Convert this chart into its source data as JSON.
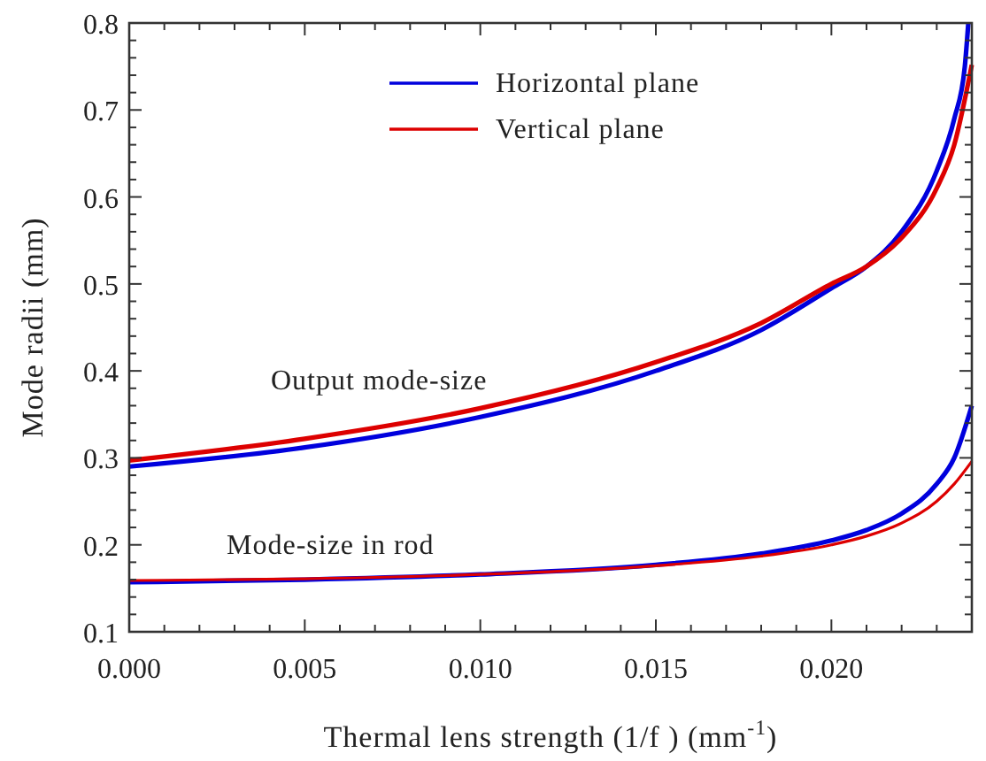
{
  "chart_data": {
    "type": "line",
    "xlabel": "Thermal lens strength (1/f ) (mm$^{-1}$)",
    "ylabel": "Mode radii (mm)",
    "xlim": [
      0,
      0.024
    ],
    "ylim": [
      0.1,
      0.8
    ],
    "xticks": [
      {
        "value": 0,
        "label": "0.000"
      },
      {
        "value": 0.001,
        "label": null
      },
      {
        "value": 0.002,
        "label": null
      },
      {
        "value": 0.003,
        "label": null
      },
      {
        "value": 0.004,
        "label": null
      },
      {
        "value": 0.005,
        "label": "0.005"
      },
      {
        "value": 0.006,
        "label": null
      },
      {
        "value": 0.007,
        "label": null
      },
      {
        "value": 0.008,
        "label": null
      },
      {
        "value": 0.009,
        "label": null
      },
      {
        "value": 0.01,
        "label": "0.010"
      },
      {
        "value": 0.011,
        "label": null
      },
      {
        "value": 0.012,
        "label": null
      },
      {
        "value": 0.013,
        "label": null
      },
      {
        "value": 0.014,
        "label": null
      },
      {
        "value": 0.015,
        "label": "0.015"
      },
      {
        "value": 0.016,
        "label": null
      },
      {
        "value": 0.017,
        "label": null
      },
      {
        "value": 0.018,
        "label": null
      },
      {
        "value": 0.019,
        "label": null
      },
      {
        "value": 0.02,
        "label": "0.020"
      },
      {
        "value": 0.021,
        "label": null
      },
      {
        "value": 0.022,
        "label": null
      },
      {
        "value": 0.023,
        "label": null
      }
    ],
    "yticks": [
      0.1,
      {
        "value": 0.12,
        "label": null
      },
      {
        "value": 0.14,
        "label": null
      },
      {
        "value": 0.16,
        "label": null
      },
      {
        "value": 0.18,
        "label": null
      },
      0.2,
      {
        "value": 0.22,
        "label": null
      },
      {
        "value": 0.24,
        "label": null
      },
      {
        "value": 0.26,
        "label": null
      },
      {
        "value": 0.28,
        "label": null
      },
      0.3,
      {
        "value": 0.32,
        "label": null
      },
      {
        "value": 0.34,
        "label": null
      },
      {
        "value": 0.36,
        "label": null
      },
      {
        "value": 0.38,
        "label": null
      },
      0.4,
      {
        "value": 0.42,
        "label": null
      },
      {
        "value": 0.44,
        "label": null
      },
      {
        "value": 0.46,
        "label": null
      },
      {
        "value": 0.48,
        "label": null
      },
      0.5,
      {
        "value": 0.52,
        "label": null
      },
      {
        "value": 0.54,
        "label": null
      },
      {
        "value": 0.56,
        "label": null
      },
      {
        "value": 0.58,
        "label": null
      },
      0.6,
      {
        "value": 0.62,
        "label": null
      },
      {
        "value": 0.64,
        "label": null
      },
      {
        "value": 0.66,
        "label": null
      },
      {
        "value": 0.68,
        "label": null
      },
      0.7,
      {
        "value": 0.72,
        "label": null
      },
      {
        "value": 0.74,
        "label": null
      },
      {
        "value": 0.76,
        "label": null
      },
      {
        "value": 0.78,
        "label": null
      },
      0.8
    ],
    "grid": false,
    "legend": "top",
    "marker": "none",
    "line_style": "solid",
    "series": [
      {
        "name": "Horizontal plane",
        "color": "#0000dd",
        "x": [
          0,
          0.005,
          0.01,
          0.015,
          0.018,
          0.02,
          0.021,
          0.022,
          0.023,
          0.0235,
          0.0238,
          0.0239
        ],
        "values": [
          0.29,
          0.312,
          0.347,
          0.4,
          0.447,
          0.495,
          0.52,
          0.56,
          0.63,
          0.69,
          0.75,
          0.8
        ]
      },
      {
        "name": "Vertical plane",
        "color": "#dd0000",
        "x": [
          0,
          0.005,
          0.01,
          0.015,
          0.018,
          0.02,
          0.021,
          0.022,
          0.023,
          0.0235,
          0.024
        ],
        "values": [
          0.297,
          0.322,
          0.357,
          0.41,
          0.455,
          0.5,
          0.52,
          0.553,
          0.61,
          0.66,
          0.752
        ]
      },
      {
        "color": "#0000dd",
        "x": [
          0,
          0.005,
          0.01,
          0.015,
          0.018,
          0.02,
          0.021,
          0.022,
          0.023,
          0.0235,
          0.024
        ],
        "values": [
          0.157,
          0.16,
          0.166,
          0.177,
          0.19,
          0.205,
          0.217,
          0.236,
          0.27,
          0.3,
          0.36
        ]
      },
      {
        "color": "#dd0000",
        "x": [
          0,
          0.005,
          0.01,
          0.015,
          0.018,
          0.02,
          0.021,
          0.022,
          0.023,
          0.0235,
          0.024
        ],
        "values": [
          0.159,
          0.161,
          0.166,
          0.176,
          0.187,
          0.2,
          0.21,
          0.225,
          0.25,
          0.27,
          0.296
        ]
      }
    ],
    "annotations": [
      "Output mode-size",
      "Mode-size in rod"
    ]
  }
}
